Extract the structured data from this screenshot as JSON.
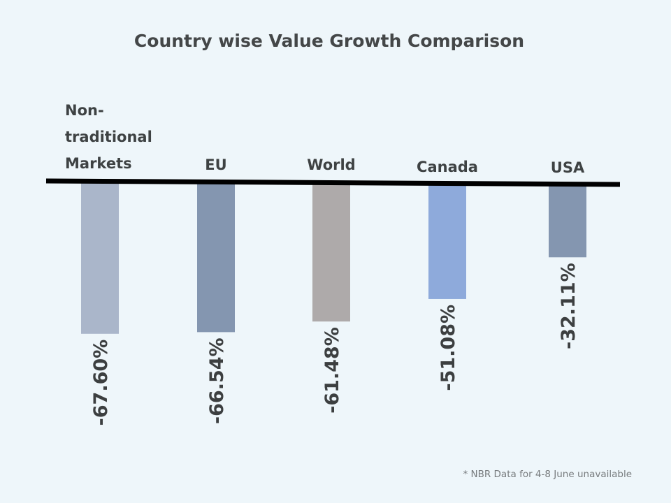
{
  "chart_data": {
    "type": "bar",
    "title": "Country wise Value Growth Comparison",
    "categories": [
      "Non-traditional Markets",
      "EU",
      "World",
      "Canada",
      "USA"
    ],
    "category_label_lines": [
      [
        "Non-",
        "traditional",
        "Markets"
      ],
      [
        "EU"
      ],
      [
        "World"
      ],
      [
        "Canada"
      ],
      [
        "USA"
      ]
    ],
    "values": [
      -67.6,
      -66.54,
      -61.48,
      -51.08,
      -32.11
    ],
    "data_labels": [
      "-67.60%",
      "-66.54%",
      "-61.48%",
      "-51.08%",
      "-32.11%"
    ],
    "colors": [
      "#aab6ca",
      "#8496b0",
      "#aeaaaa",
      "#8eaadb",
      "#8496b0"
    ],
    "xlabel": "",
    "ylabel": "",
    "ylim": [
      -70,
      0
    ],
    "grid": false,
    "legend": "none",
    "baseline_color": "#000000",
    "footnote": "* NBR Data for 4-8 June unavailable"
  }
}
